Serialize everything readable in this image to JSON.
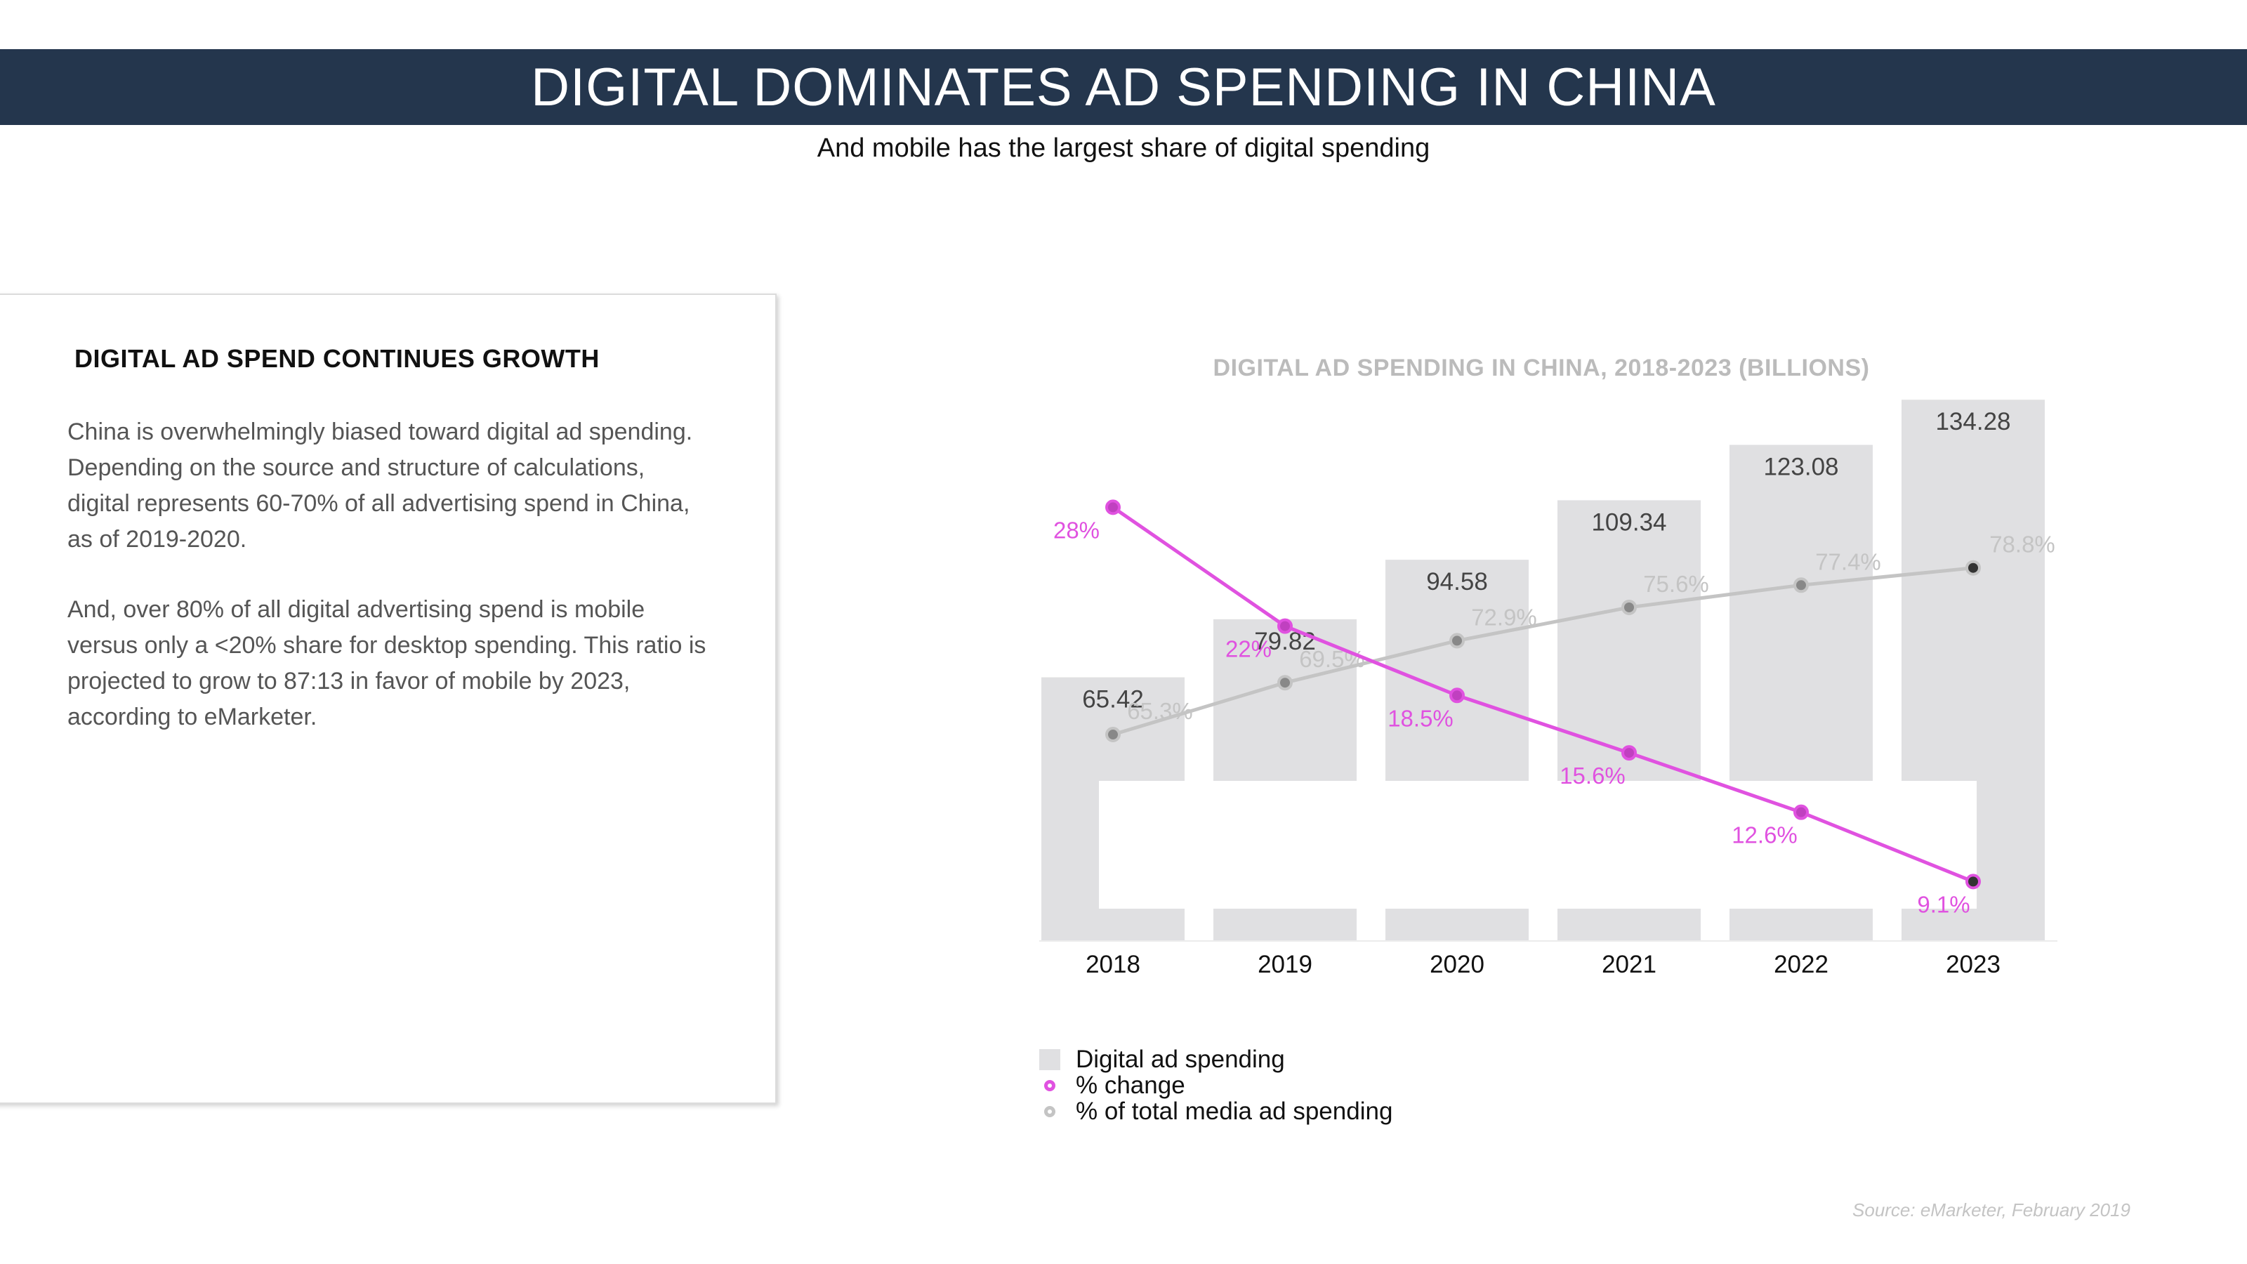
{
  "header": {
    "title": "DIGITAL DOMINATES AD SPENDING IN CHINA",
    "subtitle": "And mobile has the largest share of digital spending"
  },
  "card": {
    "heading": "DIGITAL AD SPEND CONTINUES GROWTH",
    "paragraph_1": "China is overwhelmingly biased toward digital ad spending. Depending on the source and structure of calculations, digital represents 60-70% of all advertising spend in China, as of 2019-2020.",
    "paragraph_2": "And, over 80% of all digital advertising spend is mobile versus only a <20% share for desktop spending. This ratio is projected to grow to 87:13 in favor of mobile by 2023, according to eMarketer."
  },
  "chart_data": {
    "type": "bar",
    "title": "DIGITAL AD SPENDING IN CHINA, 2018-2023 (BILLIONS)",
    "categories": [
      "2018",
      "2019",
      "2020",
      "2021",
      "2022",
      "2023"
    ],
    "series": [
      {
        "name": "Digital ad spending",
        "kind": "bar",
        "values": [
          65.42,
          79.82,
          94.58,
          109.34,
          123.08,
          134.28
        ],
        "labels": [
          "65.42",
          "79.82",
          "94.58",
          "109.34",
          "123.08",
          "134.28"
        ],
        "color": "#e0e0e2"
      },
      {
        "name": "% change",
        "kind": "line",
        "values": [
          28,
          22,
          18.5,
          15.6,
          12.6,
          9.1
        ],
        "labels": [
          "28%",
          "22%",
          "18.5%",
          "15.6%",
          "12.6%",
          "9.1%"
        ],
        "color": "#e052e0"
      },
      {
        "name": "% of total media ad spending",
        "kind": "line",
        "values": [
          65.3,
          69.5,
          72.9,
          75.6,
          77.4,
          78.8
        ],
        "labels": [
          "65.3%",
          "69.5%",
          "72.9%",
          "75.6%",
          "77.4%",
          "78.8%"
        ],
        "color": "#c4c4c4"
      }
    ]
  },
  "source": "Source: eMarketer, February 2019"
}
